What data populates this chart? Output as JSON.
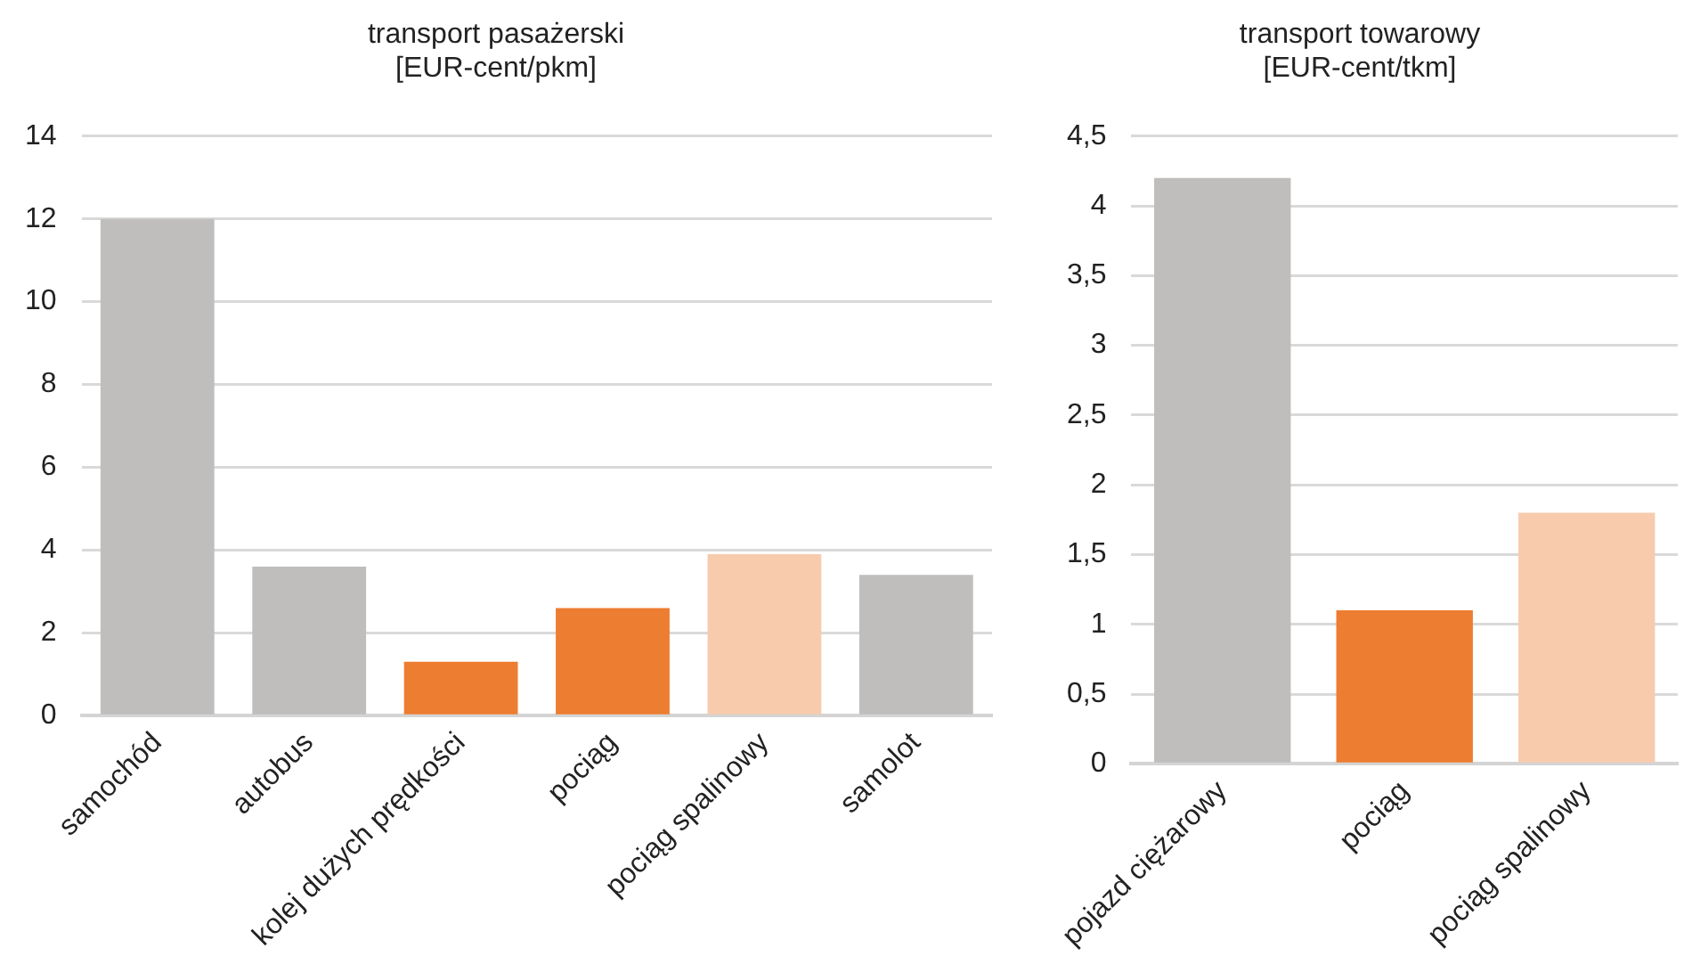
{
  "chart_data": [
    {
      "type": "bar",
      "title": "transport pasażerski\n[EUR-cent/pkm]",
      "categories": [
        "samochód",
        "autobus",
        "kolej dużych prędkości",
        "pociąg",
        "pociąg spalinowy",
        "samolot"
      ],
      "values": [
        12,
        3.6,
        1.3,
        2.6,
        3.9,
        3.4
      ],
      "colors": [
        "#bfbebd",
        "#bfbebd",
        "#ed7d31",
        "#ed7d31",
        "#f8cbad",
        "#bfbebd"
      ],
      "ylim": [
        0,
        14
      ],
      "yticks": [
        0,
        2,
        4,
        6,
        8,
        10,
        12,
        14
      ],
      "grid": "y",
      "legend": false
    },
    {
      "type": "bar",
      "title": "transport towarowy\n[EUR-cent/tkm]",
      "categories": [
        "pojazd ciężarowy",
        "pociąg",
        "pociąg spalinowy"
      ],
      "values": [
        4.2,
        1.1,
        1.8
      ],
      "colors": [
        "#bfbebd",
        "#ed7d31",
        "#f8cbad"
      ],
      "ylim": [
        0,
        4.5
      ],
      "yticks": [
        0,
        {
          "value": 0.5,
          "label": "0,5"
        },
        1,
        {
          "value": 1.5,
          "label": "1,5"
        },
        2,
        {
          "value": 2.5,
          "label": "2,5"
        },
        3,
        {
          "value": 3.5,
          "label": "3,5"
        },
        4,
        {
          "value": 4.5,
          "label": "4,5"
        }
      ],
      "grid": "y",
      "legend": false
    }
  ]
}
